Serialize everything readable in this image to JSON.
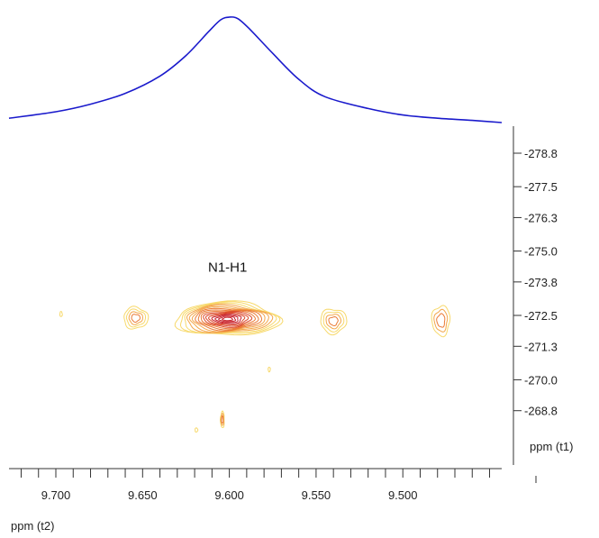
{
  "chart_data": {
    "type": "contour",
    "x_axis": {
      "label": "ppm (t2)",
      "range": [
        9.727,
        9.443
      ],
      "direction": "reversed",
      "major_ticks": [
        9.7,
        9.65,
        9.6,
        9.55,
        9.5
      ],
      "tick_labels": [
        "9.700",
        "9.650",
        "9.600",
        "9.550",
        "9.500"
      ],
      "minor_step": 0.01
    },
    "y_axis": {
      "label": "ppm (t1)",
      "range": [
        -279.5,
        -267.6
      ],
      "ticks": [
        -278.8,
        -277.5,
        -276.3,
        -275.0,
        -273.8,
        -272.5,
        -271.3,
        -270.0,
        -268.8
      ],
      "tick_labels": [
        "-278.8",
        "-277.5",
        "-276.3",
        "-275.0",
        "-273.8",
        "-272.5",
        "-271.3",
        "-270.0",
        "-268.8"
      ],
      "position": "right"
    },
    "projection_1d": {
      "axis": "t2",
      "color": "#1a1acc",
      "points": [
        [
          9.727,
          0.04
        ],
        [
          9.7,
          0.1
        ],
        [
          9.68,
          0.17
        ],
        [
          9.66,
          0.27
        ],
        [
          9.64,
          0.43
        ],
        [
          9.625,
          0.62
        ],
        [
          9.612,
          0.84
        ],
        [
          9.605,
          0.95
        ],
        [
          9.6,
          0.975
        ],
        [
          9.595,
          0.96
        ],
        [
          9.588,
          0.86
        ],
        [
          9.575,
          0.64
        ],
        [
          9.56,
          0.4
        ],
        [
          9.545,
          0.24
        ],
        [
          9.52,
          0.13
        ],
        [
          9.5,
          0.07
        ],
        [
          9.48,
          0.04
        ],
        [
          9.46,
          0.02
        ],
        [
          9.443,
          0.0
        ]
      ]
    },
    "contour_colors": [
      "#f7d96b",
      "#f3a64a",
      "#ea7a36",
      "#dc4a2c",
      "#c8202a"
    ],
    "peaks": [
      {
        "x": 9.601,
        "y": -272.36,
        "rx": 0.03,
        "ry": 0.65,
        "levels": 16,
        "label": "N1-H1"
      },
      {
        "x": 9.654,
        "y": -272.4,
        "rx": 0.007,
        "ry": 0.42,
        "levels": 4
      },
      {
        "x": 9.54,
        "y": -272.28,
        "rx": 0.0075,
        "ry": 0.48,
        "levels": 4
      },
      {
        "x": 9.478,
        "y": -272.3,
        "rx": 0.0052,
        "ry": 0.58,
        "levels": 3
      },
      {
        "x": 9.604,
        "y": -268.45,
        "rx": 0.0011,
        "ry": 0.32,
        "levels": 3
      },
      {
        "x": 9.697,
        "y": -272.55,
        "rx": 0.0007,
        "ry": 0.1,
        "levels": 1
      },
      {
        "x": 9.619,
        "y": -268.05,
        "rx": 0.0008,
        "ry": 0.08,
        "levels": 1
      },
      {
        "x": 9.577,
        "y": -270.4,
        "rx": 0.0005,
        "ry": 0.09,
        "levels": 1
      }
    ],
    "annotations": [
      {
        "text": "N1-H1",
        "x": 9.601,
        "y": -274.2
      }
    ]
  }
}
